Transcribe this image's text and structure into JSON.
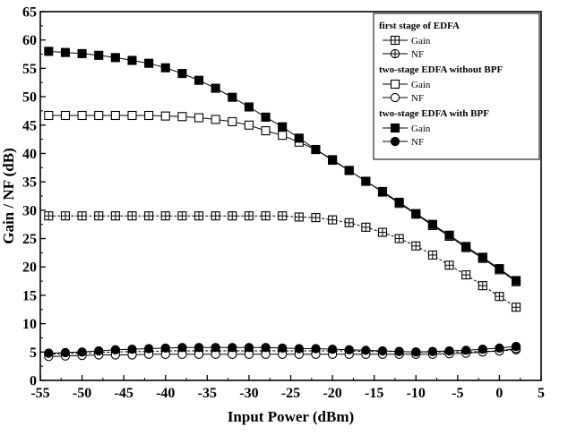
{
  "chart_data": {
    "type": "line",
    "title": "",
    "xlabel": "Input Power (dBm)",
    "ylabel": "Gain / NF (dB)",
    "xlim": [
      -55,
      5
    ],
    "ylim": [
      0,
      65
    ],
    "xticks": [
      -55,
      -50,
      -45,
      -40,
      -35,
      -30,
      -25,
      -20,
      -15,
      -10,
      -5,
      0,
      5
    ],
    "yticks": [
      0,
      5,
      10,
      15,
      20,
      25,
      30,
      35,
      40,
      45,
      50,
      55,
      60,
      65
    ],
    "grid": false,
    "legend_position": "top-right",
    "legend_groups": [
      {
        "title": "first stage of EDFA",
        "entries": [
          {
            "label": "Gain",
            "marker": "squareplus"
          },
          {
            "label": "NF",
            "marker": "circleplus"
          }
        ]
      },
      {
        "title": "two-stage EDFA without BPF",
        "entries": [
          {
            "label": "Gain",
            "marker": "square-open"
          },
          {
            "label": "NF",
            "marker": "circle-open"
          }
        ]
      },
      {
        "title": "two-stage EDFA with BPF",
        "entries": [
          {
            "label": "Gain",
            "marker": "square-filled"
          },
          {
            "label": "NF",
            "marker": "circle-filled"
          }
        ]
      }
    ],
    "x": [
      -54,
      -52,
      -50,
      -48,
      -46,
      -44,
      -42,
      -40,
      -38,
      -36,
      -34,
      -32,
      -30,
      -28,
      -26,
      -24,
      -22,
      -20,
      -18,
      -16,
      -14,
      -12,
      -10,
      -8,
      -6,
      -4,
      -2,
      0,
      2
    ],
    "series": [
      {
        "group": "first stage of EDFA",
        "name": "Gain",
        "marker": "squareplus",
        "values": [
          29,
          29,
          29,
          29,
          29,
          29,
          29,
          29,
          29,
          29,
          29,
          29,
          29,
          29,
          29,
          28.8,
          28.7,
          28.3,
          27.8,
          27,
          26.1,
          25,
          23.7,
          22.1,
          20.3,
          18.6,
          16.7,
          14.8,
          12.9
        ]
      },
      {
        "group": "first stage of EDFA",
        "name": "NF",
        "marker": "circleplus",
        "values": [
          4.6,
          4.7,
          4.8,
          4.9,
          5,
          5.1,
          5.1,
          5.2,
          5.2,
          5.2,
          5.2,
          5.2,
          5.2,
          5.2,
          5.2,
          5.2,
          5.2,
          5.2,
          5.2,
          5.1,
          5.1,
          5.1,
          5,
          5,
          5,
          5,
          5.1,
          5.2,
          5.4
        ]
      },
      {
        "group": "two-stage EDFA without BPF",
        "name": "Gain",
        "marker": "square-open",
        "values": [
          46.7,
          46.7,
          46.7,
          46.7,
          46.7,
          46.7,
          46.7,
          46.6,
          46.5,
          46.3,
          46,
          45.6,
          45,
          44,
          43.2,
          42,
          40.7,
          38.9,
          37,
          35.1,
          33.2,
          31.2,
          29.3,
          27.3,
          25.4,
          23.4,
          21.5,
          19.5,
          17.4
        ]
      },
      {
        "group": "two-stage EDFA without BPF",
        "name": "NF",
        "marker": "circle-open",
        "values": [
          4.2,
          4.3,
          4.4,
          4.5,
          4.5,
          4.5,
          4.6,
          4.6,
          4.6,
          4.6,
          4.6,
          4.6,
          4.6,
          4.6,
          4.6,
          4.6,
          4.6,
          4.6,
          4.6,
          4.6,
          4.6,
          4.6,
          4.6,
          4.6,
          4.7,
          4.8,
          5,
          5.2,
          5.6
        ]
      },
      {
        "group": "two-stage EDFA with BPF",
        "name": "Gain",
        "marker": "square-filled",
        "values": [
          58,
          57.8,
          57.6,
          57.3,
          56.9,
          56.4,
          55.9,
          55.1,
          54.1,
          52.9,
          51.5,
          49.9,
          48.2,
          46.4,
          44.7,
          42.7,
          40.7,
          38.8,
          37,
          35.1,
          33.3,
          31.4,
          29.4,
          27.5,
          25.6,
          23.6,
          21.7,
          19.7,
          17.6
        ]
      },
      {
        "group": "two-stage EDFA with BPF",
        "name": "NF",
        "marker": "circle-filled",
        "values": [
          4.8,
          4.9,
          5,
          5.2,
          5.4,
          5.5,
          5.6,
          5.7,
          5.8,
          5.8,
          5.8,
          5.8,
          5.8,
          5.8,
          5.7,
          5.6,
          5.6,
          5.5,
          5.4,
          5.3,
          5.2,
          5.1,
          5,
          5.1,
          5.2,
          5.3,
          5.5,
          5.7,
          6
        ]
      }
    ]
  }
}
